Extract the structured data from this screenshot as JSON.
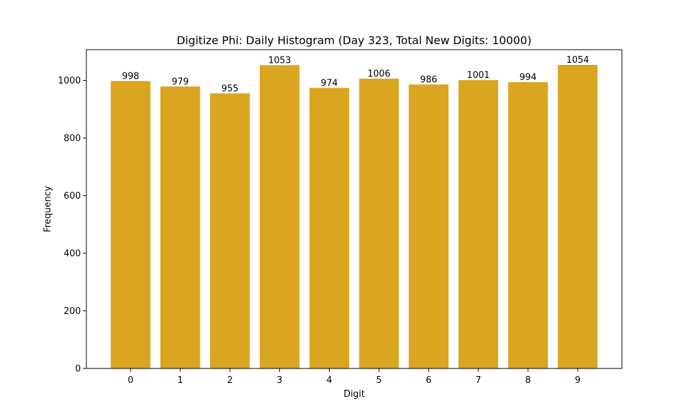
{
  "chart_data": {
    "type": "bar",
    "title": "Digitize Phi: Daily Histogram (Day 323, Total New Digits: 10000)",
    "xlabel": "Digit",
    "ylabel": "Frequency",
    "categories": [
      "0",
      "1",
      "2",
      "3",
      "4",
      "5",
      "6",
      "7",
      "8",
      "9"
    ],
    "values": [
      998,
      979,
      955,
      1053,
      974,
      1006,
      986,
      1001,
      994,
      1054
    ],
    "data_labels": [
      "998",
      "979",
      "955",
      "1053",
      "974",
      "1006",
      "986",
      "1001",
      "994",
      "1054"
    ],
    "yticks": [
      0,
      200,
      400,
      600,
      800,
      1000
    ],
    "ytick_labels": [
      "0",
      "200",
      "400",
      "600",
      "800",
      "1000"
    ],
    "ylim": [
      0,
      1106.7
    ],
    "grid": false,
    "legend": "none",
    "bar_color": "#DAA520"
  }
}
